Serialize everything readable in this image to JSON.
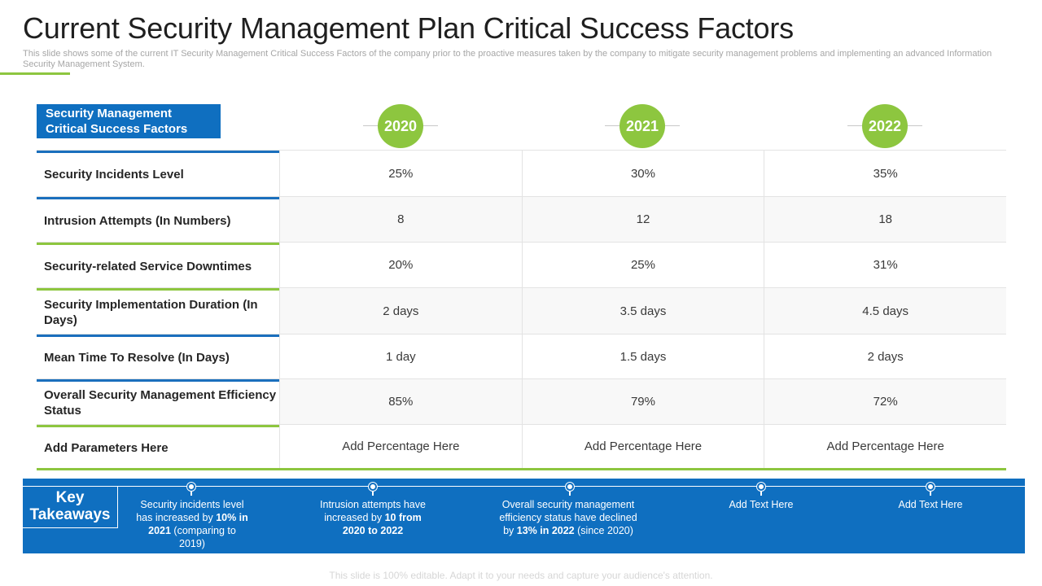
{
  "title": "Current Security Management Plan Critical Success Factors",
  "subtitle": "This slide shows some of the current IT Security Management Critical Success Factors of the company prior to the proactive measures taken by the company to mitigate security management problems and implementing an advanced Information Security Management System.",
  "table": {
    "header_label_line1": "Security Management",
    "header_label_line2": "Critical  Success Factors",
    "years": [
      "2020",
      "2021",
      "2022"
    ],
    "rows": [
      {
        "label": "Security Incidents Level",
        "values": [
          "25%",
          "30%",
          "35%"
        ]
      },
      {
        "label": "Intrusion Attempts (In Numbers)",
        "values": [
          "8",
          "12",
          "18"
        ]
      },
      {
        "label": "Security-related Service Downtimes",
        "values": [
          "20%",
          "25%",
          "31%"
        ]
      },
      {
        "label": "Security Implementation Duration (In Days)",
        "values": [
          "2 days",
          "3.5 days",
          "4.5 days"
        ]
      },
      {
        "label": "Mean Time To Resolve (In Days)",
        "values": [
          "1 day",
          "1.5 days",
          "2 days"
        ]
      },
      {
        "label": "Overall  Security Management Efficiency Status",
        "values": [
          "85%",
          "79%",
          "72%"
        ]
      },
      {
        "label": "Add Parameters Here",
        "values": [
          "Add Percentage Here",
          "Add Percentage Here",
          "Add Percentage Here"
        ]
      }
    ]
  },
  "takeaways": {
    "heading_line1": "Key",
    "heading_line2": "Takeaways",
    "items": [
      {
        "pre": "Security incidents level has increased by",
        "bold": "10%  in 2021",
        "post": "(comparing to 2019)"
      },
      {
        "pre": "Intrusion attempts have increased by",
        "bold": "10 from 2020 to 2022",
        "post": ""
      },
      {
        "pre": "Overall security management efficiency status have declined by",
        "bold": "13% in 2022",
        "post": "(since 2020)"
      },
      {
        "pre": "Add Text Here",
        "bold": "",
        "post": ""
      },
      {
        "pre": "Add Text Here",
        "bold": "",
        "post": ""
      }
    ]
  },
  "footer": "This slide is 100% editable. Adapt it to your needs and capture your audience's attention.",
  "colors": {
    "blue": "#0f6fc0",
    "green": "#8dc63f"
  }
}
